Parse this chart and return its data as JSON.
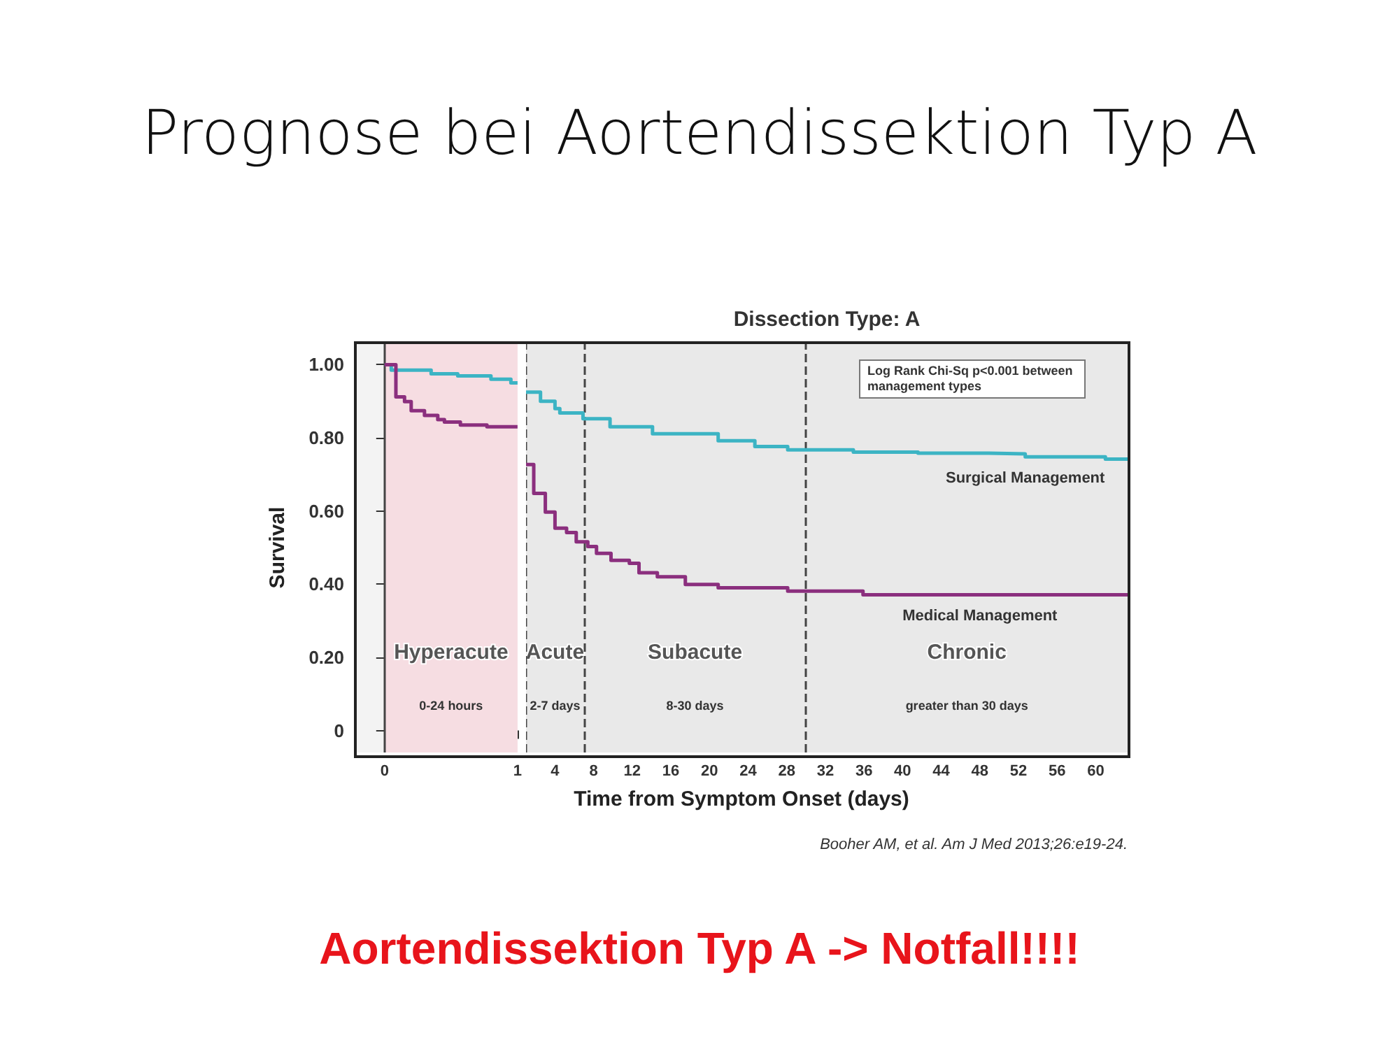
{
  "chart_data": [
    {
      "type": "step",
      "title": "Prognose bei Aortendissektion Typ A",
      "ylabel": "Survival",
      "xlim": [
        -0.22,
        1
      ],
      "xticks": [
        0,
        1
      ],
      "ylim": [
        -0.06,
        1.06
      ],
      "yticks": [
        0,
        {
          "value": 0.2,
          "label": "0.20"
        },
        {
          "value": 0.4,
          "label": "0.40"
        },
        {
          "value": 0.6,
          "label": "0.60"
        },
        {
          "value": 0.8,
          "label": "0.80"
        },
        {
          "value": 1,
          "label": "1.00"
        }
      ],
      "series": [
        {
          "color": "#3cb4c4",
          "x": [
            0,
            0.05,
            0.35,
            0.55,
            0.8,
            0.95,
            1
          ],
          "values": [
            1.0,
            0.985,
            0.975,
            0.969,
            0.96,
            0.95,
            0.95
          ]
        },
        {
          "color": "#8b2f7e",
          "x": [
            0,
            0.085,
            0.15,
            0.2,
            0.3,
            0.4,
            0.45,
            0.57,
            0.77,
            1
          ],
          "values": [
            1.0,
            0.912,
            0.899,
            0.874,
            0.861,
            0.85,
            0.843,
            0.835,
            0.83,
            0.83
          ]
        }
      ],
      "bands": [
        {
          "axis": "x",
          "from": 0,
          "to": 1,
          "label": "Hyperacute",
          "color": "#f6dde2"
        }
      ],
      "ref_lines": [
        {
          "axis": "x",
          "value": 0,
          "line_style": "solid",
          "color": "#444444"
        }
      ],
      "annotations": [
        "0-24 hours",
        "Booher AM, et al.  Am J Med  2013;26:e19-24.",
        "Aortendissektion Typ A -> Notfall!!!!"
      ],
      "marker": "none",
      "line_style": "solid"
    },
    {
      "type": "step",
      "subtitle": "Dissection Type: A",
      "xlabel": "Time from Symptom Onset (days)",
      "tick_labels": "x",
      "xlim": [
        1,
        63.3
      ],
      "xticks": [
        4,
        8,
        12,
        16,
        20,
        24,
        28,
        32,
        36,
        40,
        44,
        48,
        52,
        56,
        60
      ],
      "ylim": [
        -0.06,
        1.06
      ],
      "series": [
        {
          "name": "Surgical Management",
          "color": "#3cb4c4",
          "x": [
            1,
            2.5,
            4.0,
            4.5,
            6.9,
            9.7,
            14.1,
            20.9,
            24.7,
            28.1,
            34.9,
            41.6,
            48.9,
            52.7,
            61,
            63.3
          ],
          "values": [
            0.925,
            0.9,
            0.88,
            0.868,
            0.852,
            0.83,
            0.811,
            0.792,
            0.776,
            0.767,
            0.761,
            0.758,
            0.756,
            0.748,
            0.742,
            0.74
          ]
        },
        {
          "name": "Medical Management",
          "color": "#8b2f7e",
          "x": [
            1,
            1.8,
            3.0,
            4.0,
            5.2,
            6.2,
            7.4,
            8.3,
            9.8,
            11.7,
            12.7,
            14.6,
            17.5,
            20.9,
            28.1,
            35.9,
            48,
            55,
            63.3
          ],
          "values": [
            0.727,
            0.648,
            0.597,
            0.553,
            0.541,
            0.516,
            0.503,
            0.484,
            0.465,
            0.457,
            0.431,
            0.42,
            0.399,
            0.39,
            0.381,
            0.371,
            0.371,
            0.371,
            0.371
          ]
        }
      ],
      "bands": [
        {
          "axis": "x",
          "from": 1,
          "to": 7,
          "label": "Acute",
          "color": "#e9e9e9"
        },
        {
          "axis": "x",
          "from": 7,
          "to": 30,
          "label": "Subacute",
          "color": "#e9e9e9"
        },
        {
          "axis": "x",
          "from": 30,
          "to": 63.3,
          "label": "Chronic",
          "color": "#e9e9e9"
        }
      ],
      "ref_lines": [
        {
          "axis": "x",
          "value": 1,
          "line_style": "dashed",
          "color": "#444444"
        },
        {
          "axis": "x",
          "value": 7,
          "line_style": "dashed",
          "color": "#444444"
        },
        {
          "axis": "x",
          "value": 30,
          "line_style": "dashed",
          "color": "#444444"
        }
      ],
      "annotations": [
        "2-7 days",
        "8-30 days",
        "greater than 30 days",
        "Log Rank Chi-Sq p<0.001 between management types"
      ],
      "marker": "none",
      "line_style": "solid"
    }
  ]
}
